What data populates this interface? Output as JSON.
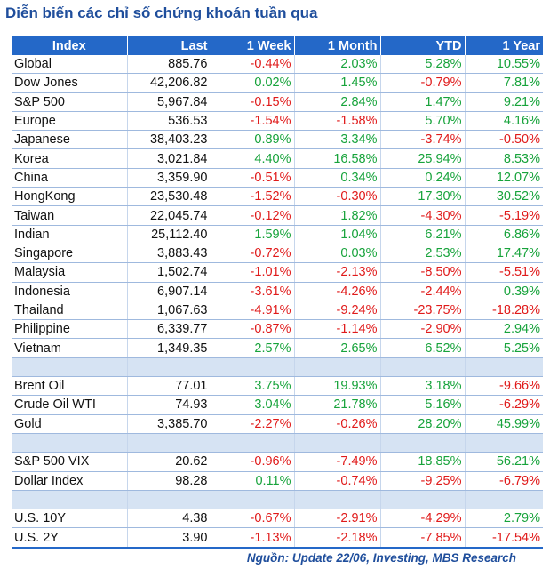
{
  "title": "Diễn biến các chỉ số chứng khoán tuần qua",
  "headers": [
    "Index",
    "Last",
    "1 Week",
    "1 Month",
    "YTD",
    "1 Year"
  ],
  "rows": [
    {
      "name": "Global",
      "last": "885.76",
      "w1": "-0.44%",
      "m1": "2.03%",
      "ytd": "5.28%",
      "y1": "10.55%"
    },
    {
      "name": "Dow Jones",
      "last": "42,206.82",
      "w1": "0.02%",
      "m1": "1.45%",
      "ytd": "-0.79%",
      "y1": "7.81%"
    },
    {
      "name": "S&P 500",
      "last": "5,967.84",
      "w1": "-0.15%",
      "m1": "2.84%",
      "ytd": "1.47%",
      "y1": "9.21%"
    },
    {
      "name": "Europe",
      "last": "536.53",
      "w1": "-1.54%",
      "m1": "-1.58%",
      "ytd": "5.70%",
      "y1": "4.16%"
    },
    {
      "name": "Japanese",
      "last": "38,403.23",
      "w1": "0.89%",
      "m1": "3.34%",
      "ytd": "-3.74%",
      "y1": "-0.50%"
    },
    {
      "name": "Korea",
      "last": "3,021.84",
      "w1": "4.40%",
      "m1": "16.58%",
      "ytd": "25.94%",
      "y1": "8.53%"
    },
    {
      "name": "China",
      "last": "3,359.90",
      "w1": "-0.51%",
      "m1": "0.34%",
      "ytd": "0.24%",
      "y1": "12.07%"
    },
    {
      "name": "HongKong",
      "last": "23,530.48",
      "w1": "-1.52%",
      "m1": "-0.30%",
      "ytd": "17.30%",
      "y1": "30.52%"
    },
    {
      "name": "Taiwan",
      "last": "22,045.74",
      "w1": "-0.12%",
      "m1": "1.82%",
      "ytd": "-4.30%",
      "y1": "-5.19%"
    },
    {
      "name": "Indian",
      "last": "25,112.40",
      "w1": "1.59%",
      "m1": "1.04%",
      "ytd": "6.21%",
      "y1": "6.86%"
    },
    {
      "name": "Singapore",
      "last": "3,883.43",
      "w1": "-0.72%",
      "m1": "0.03%",
      "ytd": "2.53%",
      "y1": "17.47%"
    },
    {
      "name": "Malaysia",
      "last": "1,502.74",
      "w1": "-1.01%",
      "m1": "-2.13%",
      "ytd": "-8.50%",
      "y1": "-5.51%"
    },
    {
      "name": "Indonesia",
      "last": "6,907.14",
      "w1": "-3.61%",
      "m1": "-4.26%",
      "ytd": "-2.44%",
      "y1": "0.39%"
    },
    {
      "name": "Thailand",
      "last": "1,067.63",
      "w1": "-4.91%",
      "m1": "-9.24%",
      "ytd": "-23.75%",
      "y1": "-18.28%"
    },
    {
      "name": "Philippine",
      "last": "6,339.77",
      "w1": "-0.87%",
      "m1": "-1.14%",
      "ytd": "-2.90%",
      "y1": "2.94%"
    },
    {
      "name": "Vietnam",
      "last": "1,349.35",
      "w1": "2.57%",
      "m1": "2.65%",
      "ytd": "6.52%",
      "y1": "5.25%"
    },
    {
      "spacer": true
    },
    {
      "name": "Brent Oil",
      "last": "77.01",
      "w1": "3.75%",
      "m1": "19.93%",
      "ytd": "3.18%",
      "y1": "-9.66%"
    },
    {
      "name": "Crude Oil WTI",
      "last": "74.93",
      "w1": "3.04%",
      "m1": "21.78%",
      "ytd": "5.16%",
      "y1": "-6.29%"
    },
    {
      "name": "Gold",
      "last": "3,385.70",
      "w1": "-2.27%",
      "m1": "-0.26%",
      "ytd": "28.20%",
      "y1": "45.99%"
    },
    {
      "spacer": true
    },
    {
      "name": "S&P 500 VIX",
      "last": "20.62",
      "w1": "-0.96%",
      "m1": "-7.49%",
      "ytd": "18.85%",
      "y1": "56.21%"
    },
    {
      "name": "Dollar Index",
      "last": "98.28",
      "w1": "0.11%",
      "m1": "-0.74%",
      "ytd": "-9.25%",
      "y1": "-6.79%"
    },
    {
      "spacer": true
    },
    {
      "name": "U.S. 10Y",
      "last": "4.38",
      "w1": "-0.67%",
      "m1": "-2.91%",
      "ytd": "-4.29%",
      "y1": "2.79%"
    },
    {
      "name": "U.S. 2Y",
      "last": "3.90",
      "w1": "-1.13%",
      "m1": "-2.18%",
      "ytd": "-7.85%",
      "y1": "-17.54%"
    }
  ],
  "source": "Nguồn: Update 22/06, Investing, MBS Research",
  "colors": {
    "header_bg": "#2468c8",
    "positive": "#17a33b",
    "negative": "#e01a1a",
    "title": "#1f4e9c",
    "spacer": "#d6e3f3"
  }
}
